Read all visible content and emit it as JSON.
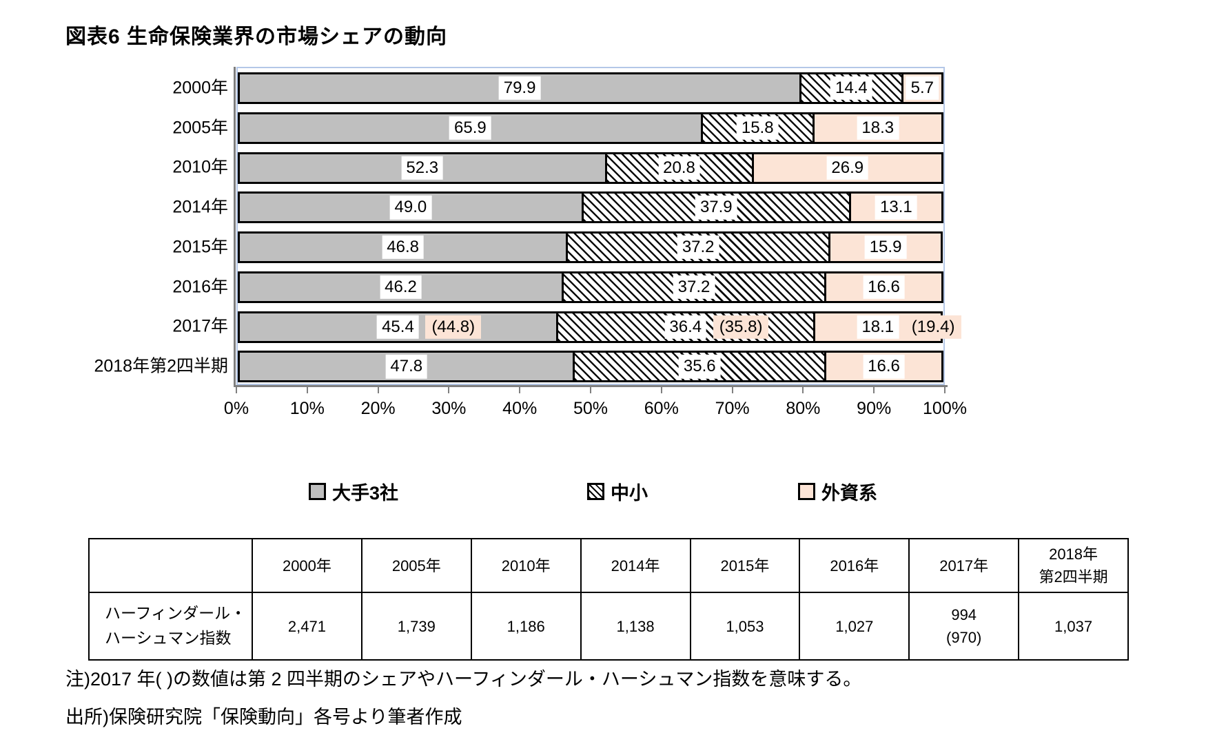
{
  "title": "図表6 生命保険業界の市場シェアの動向",
  "chart_data": {
    "type": "bar",
    "stacked": true,
    "orientation": "horizontal",
    "unit": "%",
    "xlim": [
      0,
      100
    ],
    "legend_position": "bottom",
    "categories": [
      "2000年",
      "2005年",
      "2010年",
      "2014年",
      "2015年",
      "2016年",
      "2017年",
      "2018年第2四半期"
    ],
    "series": [
      {
        "name": "大手3社",
        "color": "#bfbfbf",
        "values": [
          79.9,
          65.9,
          52.3,
          49.0,
          46.8,
          46.2,
          45.4,
          47.8
        ]
      },
      {
        "name": "中小",
        "pattern": "hatch",
        "values": [
          14.4,
          15.8,
          20.8,
          37.9,
          37.2,
          37.2,
          36.4,
          35.6
        ]
      },
      {
        "name": "外資系",
        "color": "#fce4d6",
        "values": [
          5.7,
          18.3,
          26.9,
          13.1,
          15.9,
          16.6,
          18.1,
          16.6
        ]
      }
    ],
    "parenthetical": {
      "row_index": 6,
      "category": "2017年",
      "labels": [
        "(44.8)",
        "(35.8)",
        "(19.4)"
      ],
      "highlight_color": "#fce4d6"
    },
    "x_ticks": [
      "0%",
      "10%",
      "20%",
      "30%",
      "40%",
      "50%",
      "60%",
      "70%",
      "80%",
      "90%",
      "100%"
    ],
    "colors": {
      "major3_fill": "#bfbfbf",
      "foreign_fill": "#fce4d6",
      "bar_border": "#000000",
      "hatch_stroke": "#000000",
      "plot_border": "#b4c7e7",
      "axis": "#7f7f7f"
    }
  },
  "table": {
    "columns": [
      [
        "2000年"
      ],
      [
        "2005年"
      ],
      [
        "2010年"
      ],
      [
        "2014年"
      ],
      [
        "2015年"
      ],
      [
        "2016年"
      ],
      [
        "2017年"
      ],
      [
        "2018年",
        "第2四半期"
      ]
    ],
    "row_label": [
      "ハーフィンダール・",
      "ハーシュマン指数"
    ],
    "values": [
      [
        "2,471"
      ],
      [
        "1,739"
      ],
      [
        "1,186"
      ],
      [
        "1,138"
      ],
      [
        "1,053"
      ],
      [
        "1,027"
      ],
      [
        "994",
        "(970)"
      ],
      [
        "1,037"
      ]
    ]
  },
  "notes": {
    "note": "注)2017 年(  )の数値は第 2 四半期のシェアやハーフィンダール・ハーシュマン指数を意味する。",
    "source": "出所)保険研究院「保険動向」各号より筆者作成"
  }
}
